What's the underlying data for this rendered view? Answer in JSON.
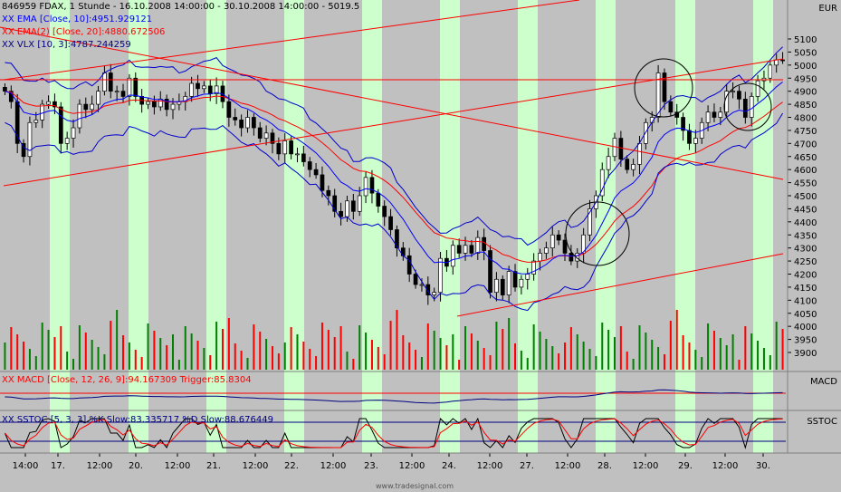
{
  "header": {
    "title": "846959 FDAX, 1 Stunde - 16.10.2008 14:00:00 - 30.10.2008 14:00:00 - 5019.5",
    "ema": "XX EMA [Close, 10]:4951.929121",
    "ema2": "XX EMA(2) [Close, 20]:4880.672506",
    "vlx": "XX VLX [10, 3]:4787.244259",
    "macd": "XX MACD [Close, 12, 26, 9]:94.167309 Trigger:85.8304",
    "sstoc": "XX SSTOC [5, 3, 3] %K Slow:83.335717 %D Slow:88.676449"
  },
  "currency": "EUR",
  "panel_labels": {
    "macd": "MACD",
    "sstoc": "SSTOC"
  },
  "footer": "www.tradesignal.com",
  "colors": {
    "background": "#c0c0c0",
    "session_band": "#ccffcc",
    "ema": "#0000ff",
    "ema2": "#ff0000",
    "vlx": "#0000cd",
    "volume_up": "#008000",
    "volume_down": "#ff0000",
    "trendline": "#ff0000",
    "candle_up": "#ffffff",
    "candle_down": "#000000"
  },
  "chart_data": {
    "type": "candlestick",
    "instrument": "846959 FDAX, 1 Stunde",
    "y_axis_ticks": [
      5100,
      5050,
      5000,
      4950,
      4900,
      4850,
      4800,
      4750,
      4700,
      4650,
      4600,
      4550,
      4500,
      4450,
      4400,
      4350,
      4300,
      4250,
      4200,
      4150,
      4100,
      4050,
      4000,
      3950,
      3900
    ],
    "ylim": [
      3850,
      5150
    ],
    "x_tick_labels": [
      "14:00",
      "17.",
      "12:00",
      "20.",
      "12:00",
      "21.",
      "12:00",
      "22.",
      "12:00",
      "23.",
      "12:00",
      "24.",
      "12:00",
      "27.",
      "12:00",
      "28.",
      "12:00",
      "29.",
      "12:00",
      "30."
    ],
    "close": [
      4900,
      4860,
      4700,
      4650,
      4780,
      4790,
      4850,
      4860,
      4840,
      4700,
      4720,
      4760,
      4850,
      4830,
      4850,
      4900,
      4970,
      4900,
      4900,
      4880,
      4950,
      4880,
      4850,
      4860,
      4840,
      4870,
      4830,
      4850,
      4860,
      4880,
      4930,
      4910,
      4920,
      4890,
      4920,
      4860,
      4800,
      4790,
      4760,
      4800,
      4760,
      4720,
      4740,
      4700,
      4660,
      4710,
      4660,
      4660,
      4630,
      4600,
      4580,
      4520,
      4500,
      4440,
      4420,
      4480,
      4440,
      4500,
      4570,
      4510,
      4460,
      4420,
      4370,
      4300,
      4270,
      4200,
      4160,
      4160,
      4120,
      4130,
      4260,
      4230,
      4310,
      4280,
      4310,
      4280,
      4340,
      4290,
      4130,
      4180,
      4120,
      4210,
      4150,
      4180,
      4200,
      4250,
      4280,
      4300,
      4350,
      4330,
      4280,
      4250,
      4280,
      4350,
      4450,
      4500,
      4600,
      4650,
      4720,
      4640,
      4600,
      4620,
      4700,
      4780,
      4800,
      4970,
      4860,
      4820,
      4800,
      4750,
      4700,
      4720,
      4780,
      4820,
      4800,
      4820,
      4900,
      4900,
      4870,
      4800,
      4880,
      4940,
      4950,
      5000,
      5020,
      5019.5
    ],
    "ema_10_last": 4951.929121,
    "ema_20_last": 4880.672506,
    "vlx_last": 4787.244259,
    "macd": {
      "params": [
        12,
        26,
        9
      ],
      "value": 94.167309,
      "trigger": 85.8304
    },
    "sstoc": {
      "params": [
        5,
        3,
        3
      ],
      "k_slow": 83.335717,
      "d_slow": 88.676449
    }
  }
}
